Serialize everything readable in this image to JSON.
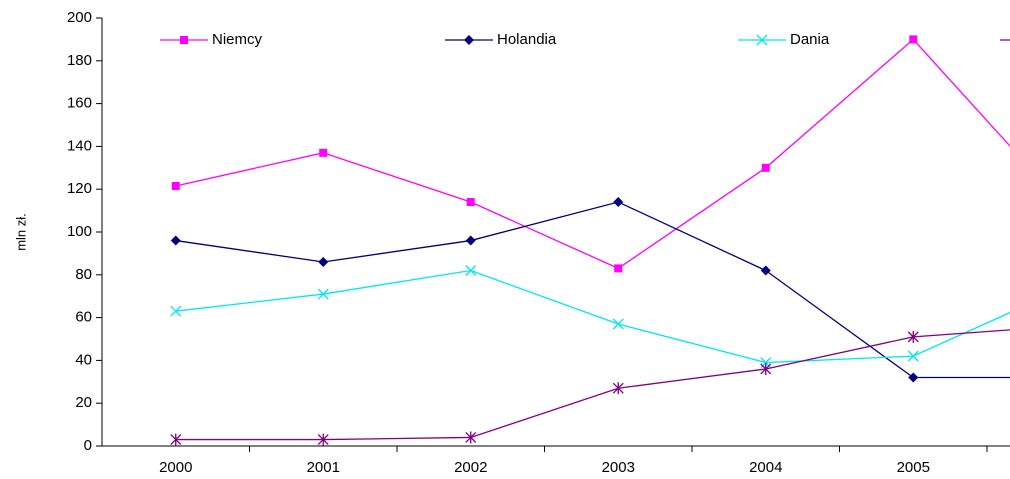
{
  "chart_data": {
    "type": "line",
    "y_label": "mln zł.",
    "categories": [
      "2000",
      "2001",
      "2002",
      "2003",
      "2004",
      "2005",
      null
    ],
    "ylim": [
      0,
      200
    ],
    "yticks": [
      0,
      20,
      40,
      60,
      80,
      100,
      120,
      140,
      160,
      180,
      200
    ],
    "series": [
      {
        "name": "Niemcy",
        "color": "#ff00ff",
        "marker": "square",
        "values": [
          121.5,
          137,
          114,
          83,
          130,
          190,
          114
        ]
      },
      {
        "name": "Holandia",
        "color": "#000080",
        "marker": "diamond",
        "values": [
          96,
          86,
          96,
          114,
          82,
          32,
          32
        ]
      },
      {
        "name": "Dania",
        "color": "#00e8f0",
        "marker": "x",
        "values": [
          63,
          71,
          82,
          57,
          39,
          42,
          73
        ]
      },
      {
        "color": "#800080",
        "marker": "asterisk",
        "values": [
          3,
          3,
          4,
          27,
          36,
          51,
          56
        ]
      }
    ]
  }
}
